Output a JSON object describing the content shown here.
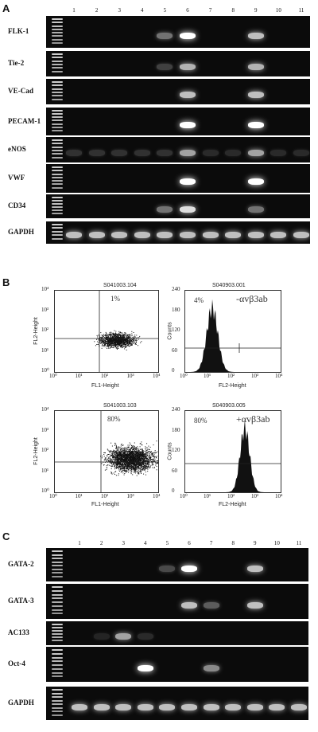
{
  "panel_a": {
    "letter": "A",
    "lanes": [
      "1",
      "2",
      "3",
      "4",
      "5",
      "6",
      "7",
      "8",
      "9",
      "10",
      "11"
    ],
    "genes": [
      "FLK-1",
      "Tie-2",
      "VE-Cad",
      "PECAM-1",
      "eNOS",
      "VWF",
      "CD34",
      "GAPDH"
    ],
    "band_strength": {
      "FLK-1": [
        0,
        0,
        0,
        0,
        0.5,
        1.0,
        0,
        0,
        0.8,
        0,
        0
      ],
      "Tie-2": [
        0,
        0,
        0,
        0,
        0.25,
        0.75,
        0,
        0,
        0.75,
        0,
        0
      ],
      "VE-Cad": [
        0,
        0,
        0,
        0,
        0,
        0.8,
        0,
        0,
        0.8,
        0,
        0
      ],
      "PECAM-1": [
        0,
        0,
        0,
        0,
        0,
        1.0,
        0,
        0,
        1.0,
        0,
        0
      ],
      "eNOS": [
        0.15,
        0.15,
        0.15,
        0.15,
        0.15,
        0.7,
        0.1,
        0.1,
        0.7,
        0.1,
        0.1
      ],
      "VWF": [
        0,
        0,
        0,
        0,
        0,
        1.0,
        0,
        0,
        1.0,
        0,
        0
      ],
      "CD34": [
        0,
        0,
        0,
        0,
        0.5,
        0.9,
        0,
        0,
        0.5,
        0,
        0
      ],
      "GAPDH": [
        0.8,
        0.8,
        0.8,
        0.8,
        0.8,
        0.8,
        0.8,
        0.8,
        0.8,
        0.8,
        0.8
      ]
    }
  },
  "panel_b": {
    "letter": "B",
    "plots": [
      {
        "title": "S041003.104",
        "type": "scatter",
        "percent": "1%",
        "xlabel": "FL1-Height",
        "ylabel": "FL2-Height"
      },
      {
        "title": "S040903.001",
        "type": "histogram",
        "percent": "4%",
        "annotation": "-αvβ3ab",
        "xlabel": "FL2-Height",
        "ylabel": "Counts"
      },
      {
        "title": "S041003.103",
        "type": "scatter",
        "percent": "80%",
        "xlabel": "FL1-Height",
        "ylabel": "FL2-Height"
      },
      {
        "title": "S040903.005",
        "type": "histogram",
        "percent": "80%",
        "annotation": "+αvβ3ab",
        "xlabel": "FL2-Height",
        "ylabel": "Counts"
      }
    ],
    "log_ticks": [
      "10⁰",
      "10¹",
      "10²",
      "10³",
      "10⁴"
    ],
    "count_ticks": [
      "0",
      "60",
      "120",
      "180",
      "240"
    ]
  },
  "panel_c": {
    "letter": "C",
    "lanes": [
      "1",
      "2",
      "3",
      "4",
      "5",
      "6",
      "7",
      "8",
      "9",
      "10",
      "11"
    ],
    "genes": [
      "GATA-2",
      "GATA-3",
      "AC133",
      "Oct-4",
      "GAPDH"
    ],
    "band_strength": {
      "GATA-2": [
        0,
        0,
        0,
        0,
        0.3,
        1.0,
        0,
        0,
        0.8,
        0,
        0
      ],
      "GATA-3": [
        0,
        0,
        0,
        0,
        0,
        0.8,
        0.4,
        0,
        0.8,
        0,
        0
      ],
      "AC133": [
        0,
        0.05,
        0.7,
        0.1,
        0,
        0,
        0,
        0,
        0,
        0,
        0
      ],
      "Oct-4": [
        0,
        0,
        0,
        1.0,
        0,
        0,
        0.6,
        0,
        0,
        0,
        0
      ],
      "GAPDH": [
        0.8,
        0.8,
        0.8,
        0.8,
        0.8,
        0.8,
        0.8,
        0.8,
        0.8,
        0.8,
        0.8
      ]
    }
  }
}
